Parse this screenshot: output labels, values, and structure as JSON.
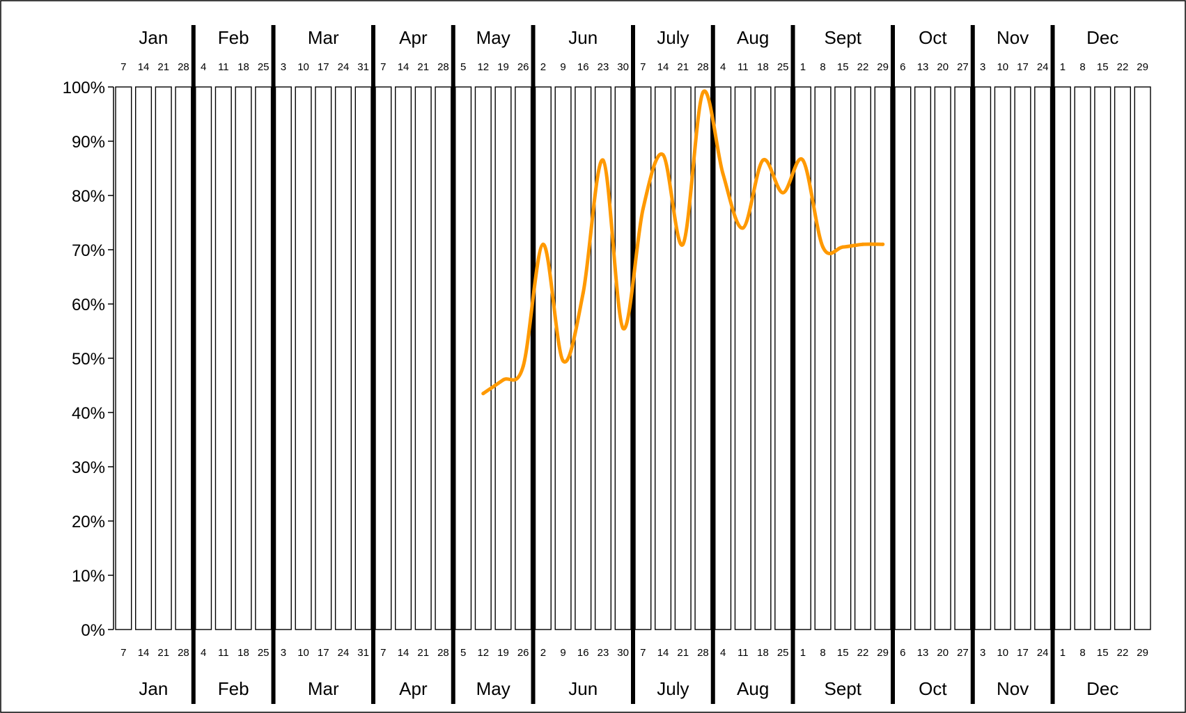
{
  "chart_data": {
    "type": "line",
    "title": "",
    "xlabel": "",
    "ylabel": "",
    "grid": "weekly vertical columns",
    "legend": "none",
    "ylim": [
      0,
      100
    ],
    "y_ticks": [
      "0%",
      "10%",
      "20%",
      "30%",
      "40%",
      "50%",
      "60%",
      "70%",
      "80%",
      "90%",
      "100%"
    ],
    "colors": {
      "series": "#FF9900",
      "column_fill": "#FFFFFF",
      "line": "#000000"
    },
    "months": [
      {
        "label": "Jan",
        "weeks": [
          "7",
          "14",
          "21",
          "28"
        ]
      },
      {
        "label": "Feb",
        "weeks": [
          "4",
          "11",
          "18",
          "25"
        ]
      },
      {
        "label": "Mar",
        "weeks": [
          "3",
          "10",
          "17",
          "24",
          "31"
        ]
      },
      {
        "label": "Apr",
        "weeks": [
          "7",
          "14",
          "21",
          "28"
        ]
      },
      {
        "label": "May",
        "weeks": [
          "5",
          "12",
          "19",
          "26"
        ]
      },
      {
        "label": "Jun",
        "weeks": [
          "2",
          "9",
          "16",
          "23",
          "30"
        ]
      },
      {
        "label": "July",
        "weeks": [
          "7",
          "14",
          "21",
          "28"
        ]
      },
      {
        "label": "Aug",
        "weeks": [
          "4",
          "11",
          "18",
          "25"
        ]
      },
      {
        "label": "Sept",
        "weeks": [
          "1",
          "8",
          "15",
          "22",
          "29"
        ]
      },
      {
        "label": "Oct",
        "weeks": [
          "6",
          "13",
          "20",
          "27"
        ]
      },
      {
        "label": "Nov",
        "weeks": [
          "3",
          "10",
          "17",
          "24"
        ]
      },
      {
        "label": "Dec",
        "weeks": [
          "1",
          "8",
          "15",
          "22",
          "29"
        ]
      }
    ],
    "series": [
      {
        "x": [
          "May 12",
          "May 19",
          "May 26",
          "Jun 2",
          "Jun 9",
          "Jun 16",
          "Jun 23",
          "Jun 30",
          "Jul 7",
          "Jul 14",
          "Jul 21",
          "Jul 28",
          "Aug 4",
          "Aug 11",
          "Aug 18",
          "Aug 25",
          "Sep 1",
          "Sep 8",
          "Sep 15",
          "Sep 22",
          "Sep 29"
        ],
        "values": [
          43.5,
          46,
          48.5,
          71,
          49.5,
          62,
          86.5,
          55.5,
          77.5,
          87.5,
          71,
          99,
          84,
          74,
          86.5,
          80.5,
          86.5,
          70.5,
          70.5,
          71,
          71
        ]
      }
    ]
  }
}
